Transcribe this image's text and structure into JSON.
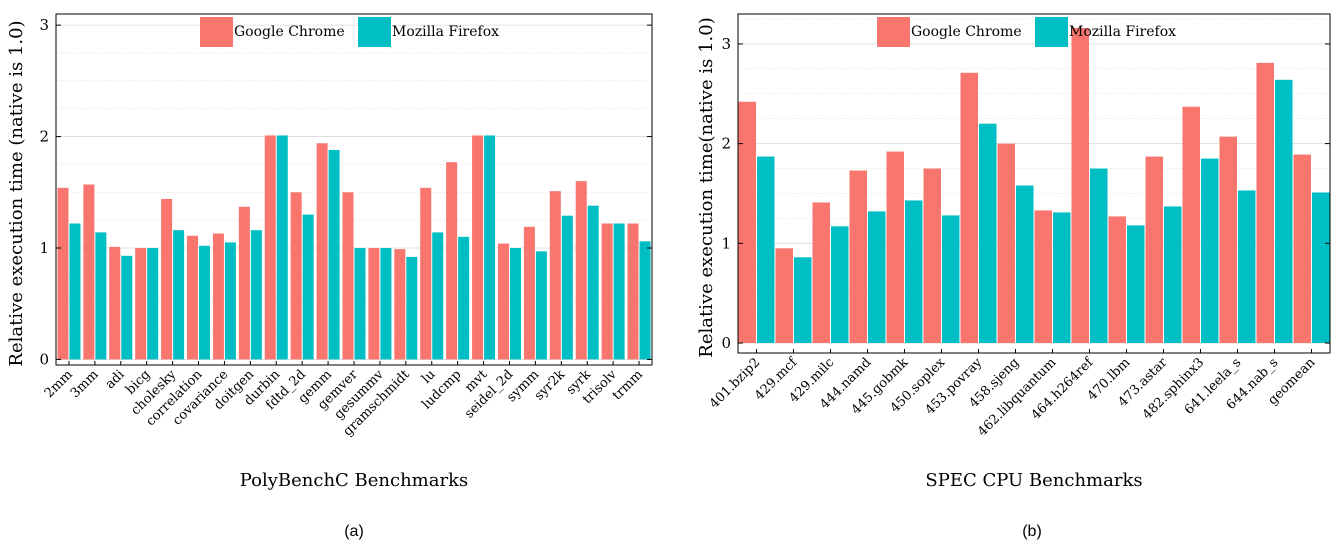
{
  "colors": {
    "chrome": "#f8766d",
    "firefox": "#00bfc4",
    "grid": "#d9d9d9",
    "axis": "#000000"
  },
  "chart_data": [
    {
      "type": "bar",
      "caption": "(a)",
      "xlabel": "PolyBenchC Benchmarks",
      "ylabel": "Relative execution time (native is 1.0)",
      "ylim": [
        -0.05,
        3.1
      ],
      "yticks": [
        0,
        1,
        2,
        3
      ],
      "grid": true,
      "legend_position": "top-center",
      "categories": [
        "2mm",
        "3mm",
        "adi",
        "bicg",
        "cholesky",
        "correlation",
        "covariance",
        "doitgen",
        "durbin",
        "fdtd_2d",
        "gemm",
        "gemver",
        "gesummv",
        "gramschmidt",
        "lu",
        "ludcmp",
        "mvt",
        "seidel_2d",
        "symm",
        "syr2k",
        "syrk",
        "trisolv",
        "trmm"
      ],
      "series": [
        {
          "name": "Google Chrome",
          "values": [
            1.54,
            1.57,
            1.01,
            1.0,
            1.44,
            1.11,
            1.13,
            1.37,
            2.01,
            1.5,
            1.94,
            1.5,
            1.0,
            0.99,
            1.54,
            1.77,
            2.01,
            1.04,
            1.19,
            1.51,
            1.6,
            1.22,
            1.22
          ]
        },
        {
          "name": "Mozilla Firefox",
          "values": [
            1.22,
            1.14,
            0.93,
            1.0,
            1.16,
            1.02,
            1.05,
            1.16,
            2.01,
            1.3,
            1.88,
            1.0,
            1.0,
            0.92,
            1.14,
            1.1,
            2.01,
            1.0,
            0.97,
            1.29,
            1.38,
            1.22,
            1.06
          ]
        }
      ]
    },
    {
      "type": "bar",
      "caption": "(b)",
      "xlabel": "SPEC CPU Benchmarks",
      "ylabel": "Relative execution time(native is 1.0)",
      "ylim": [
        -0.1,
        3.3
      ],
      "yticks": [
        0,
        1,
        2,
        3
      ],
      "grid": true,
      "legend_position": "top-center",
      "categories": [
        "401.bzip2",
        "429.mcf",
        "429.milc",
        "444.namd",
        "445.gobmk",
        "450.soplex",
        "453.povray",
        "458.sjeng",
        "462.libquantum",
        "464.h264ref",
        "470.lbm",
        "473.astar",
        "482.sphinx3",
        "641.leela_s",
        "644.nab_s",
        "geomean"
      ],
      "series": [
        {
          "name": "Google Chrome",
          "values": [
            2.42,
            0.95,
            1.41,
            1.73,
            1.92,
            1.75,
            2.71,
            2.0,
            1.33,
            3.16,
            1.27,
            1.87,
            2.37,
            2.07,
            2.81,
            1.89
          ]
        },
        {
          "name": "Mozilla Firefox",
          "values": [
            1.87,
            0.86,
            1.17,
            1.32,
            1.43,
            1.28,
            2.2,
            1.58,
            1.31,
            1.75,
            1.18,
            1.37,
            1.85,
            1.53,
            2.64,
            1.51
          ]
        }
      ]
    }
  ]
}
